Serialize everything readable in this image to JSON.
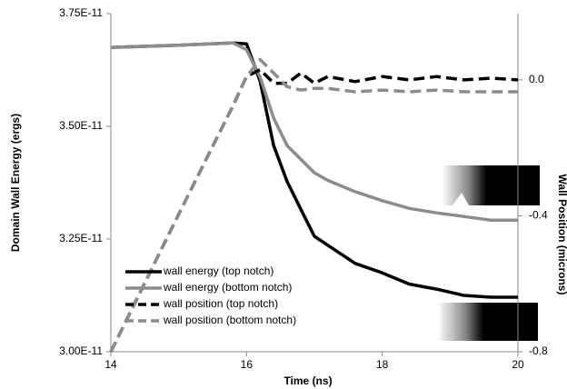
{
  "chart_data": {
    "type": "line",
    "x_label": "Time (ns)",
    "y_label": "Domain Wall Energy (ergs)",
    "y2_label": "Wall Position (microns)",
    "x": [
      14,
      15,
      15.8,
      16,
      16.2,
      16.4,
      16.6,
      16.8,
      17,
      17.2,
      17.6,
      18,
      18.4,
      18.8,
      19.2,
      19.6,
      20
    ],
    "xlim": [
      14,
      20
    ],
    "xticks": [
      14,
      16,
      18,
      20
    ],
    "ylim": [
      3e-11,
      3.75e-11
    ],
    "yticks": [
      {
        "value": 3e-11,
        "label": "3.00E-11"
      },
      {
        "value": 3.25e-11,
        "label": "3.25E-11"
      },
      {
        "value": 3.5e-11,
        "label": "3.50E-11"
      },
      {
        "value": 3.75e-11,
        "label": "3.75E-11"
      }
    ],
    "y2lim": [
      -0.8,
      0.195
    ],
    "y2ticks": [
      {
        "value": 0,
        "label": "0.0"
      },
      -0.4,
      -0.8
    ],
    "legend": "lower left",
    "series": [
      {
        "name": "wall energy (top notch)",
        "color": "#000000",
        "line_style": "solid",
        "values": [
          3.675e-11,
          3.68e-11,
          3.685e-11,
          3.683e-11,
          3.6e-11,
          3.457e-11,
          3.377e-11,
          3.316e-11,
          3.256e-11,
          3.236e-11,
          3.196e-11,
          3.175e-11,
          3.15e-11,
          3.139e-11,
          3.125e-11,
          3.121e-11,
          3.121e-11
        ]
      },
      {
        "name": "wall energy (bottom notch)",
        "color": "#8c8c8c",
        "line_style": "solid",
        "values": [
          3.675e-11,
          3.68e-11,
          3.685e-11,
          3.67e-11,
          3.609e-11,
          3.518e-11,
          3.457e-11,
          3.427e-11,
          3.397e-11,
          3.38e-11,
          3.355e-11,
          3.335e-11,
          3.318e-11,
          3.308e-11,
          3.3e-11,
          3.292e-11,
          3.292e-11
        ]
      },
      {
        "name": "wall position (top notch)",
        "color": "#000000",
        "line_style": "dashed",
        "axis": "y2",
        "values": [
          -0.8,
          -0.395,
          -0.076,
          0.01,
          0.03,
          -0.01,
          -0.01,
          0.02,
          -0.01,
          0.01,
          -0.005,
          0.01,
          0,
          0.01,
          0,
          0.005,
          0
        ]
      },
      {
        "name": "wall position (bottom notch)",
        "color": "#8c8c8c",
        "line_style": "dashed",
        "axis": "y2",
        "values": [
          -0.8,
          -0.395,
          -0.076,
          0.01,
          0.06,
          0.02,
          -0.02,
          -0.03,
          -0.025,
          -0.025,
          -0.035,
          -0.03,
          -0.035,
          -0.03,
          -0.035,
          -0.035,
          -0.035
        ]
      }
    ]
  }
}
